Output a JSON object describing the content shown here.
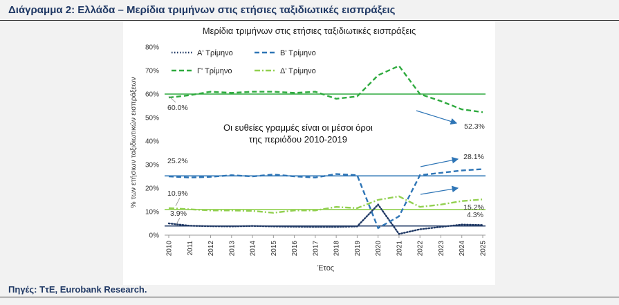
{
  "figure": {
    "title": "Διάγραμμα 2: Ελλάδα – Μερίδια τριμήνων στις ετήσιες ταξιδιωτικές εισπράξεις",
    "source": "Πηγές: ΤτΕ, Eurobank Research."
  },
  "chart_data": {
    "type": "line",
    "title": "Μερίδια τριμήνων στις ετήσιες ταξιδιωτικές εισπράξεις",
    "xlabel": "Έτος",
    "ylabel": "% των ετήσιων ταξιδιωτικών εισπράξεων",
    "x": [
      "2010",
      "2011",
      "2012",
      "2013",
      "2014",
      "2015",
      "2016",
      "2017",
      "2018",
      "2019",
      "2020",
      "2021",
      "2022",
      "2023",
      "2024",
      "2025"
    ],
    "ylim": [
      0,
      80
    ],
    "yticks": [
      0,
      10,
      20,
      30,
      40,
      50,
      60,
      70,
      80
    ],
    "ytick_labels": [
      "0%",
      "10%",
      "20%",
      "30%",
      "40%",
      "50%",
      "60%",
      "70%",
      "80%"
    ],
    "legend_position": "top-left",
    "grid": false,
    "series": [
      {
        "name": "Α' Τρίμηνο",
        "color": "#1f3864",
        "dash": "dotted",
        "values": [
          5.0,
          4.0,
          3.8,
          3.7,
          3.9,
          3.7,
          3.6,
          3.5,
          3.5,
          3.7,
          13.0,
          0.5,
          2.5,
          3.5,
          4.5,
          4.3
        ],
        "mean": 3.9
      },
      {
        "name": "Β' Τρίμηνο",
        "color": "#2e75b6",
        "dash": "dashed",
        "values": [
          25.0,
          24.5,
          24.8,
          25.5,
          25.0,
          25.8,
          25.0,
          24.5,
          26.0,
          25.5,
          3.0,
          8.0,
          25.5,
          26.5,
          27.5,
          28.1
        ],
        "mean": 25.2
      },
      {
        "name": "Γ' Τρίμηνο",
        "color": "#2eaa3e",
        "dash": "dashed",
        "values": [
          58.5,
          59.5,
          61.0,
          60.5,
          61.0,
          61.0,
          60.5,
          61.0,
          58.0,
          59.0,
          68.0,
          72.0,
          60.0,
          57.0,
          53.5,
          52.3
        ],
        "mean": 60.0
      },
      {
        "name": "Δ' Τρίμηνο",
        "color": "#92d050",
        "dash": "dashdot",
        "values": [
          11.5,
          11.0,
          10.5,
          10.5,
          10.3,
          9.5,
          10.5,
          10.5,
          12.0,
          11.5,
          15.0,
          16.5,
          12.0,
          13.0,
          14.5,
          15.2
        ],
        "mean": 10.9
      }
    ],
    "annotations": {
      "note_lines": [
        "Οι ευθείες γραμμές είναι οι μέσοι όροι",
        "της περιόδου 2010-2019"
      ],
      "start_labels": [
        "60.0%",
        "25.2%",
        "10.9%",
        "3.9%"
      ],
      "end_labels": [
        "52.3%",
        "28.1%",
        "15.2%",
        "4.3%"
      ]
    }
  }
}
